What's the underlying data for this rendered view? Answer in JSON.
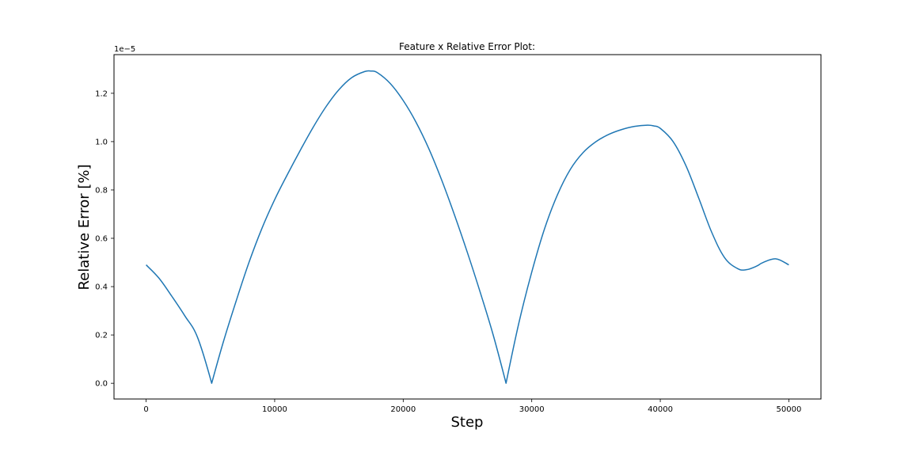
{
  "chart_data": {
    "type": "line",
    "title": "Feature x Relative Error Plot:",
    "xlabel": "Step",
    "ylabel": "Relative Error [%]",
    "y_offset_label": "1e−5",
    "y_multiplier": 1e-05,
    "xlim": [
      -2500,
      52500
    ],
    "ylim": [
      -0.065,
      1.36
    ],
    "xticks": [
      0,
      10000,
      20000,
      30000,
      40000,
      50000
    ],
    "xtick_labels": [
      "0",
      "10000",
      "20000",
      "30000",
      "40000",
      "50000"
    ],
    "yticks": [
      0.0,
      0.2,
      0.4,
      0.6,
      0.8,
      1.0,
      1.2
    ],
    "ytick_labels": [
      "0.0",
      "0.2",
      "0.4",
      "0.6",
      "0.8",
      "1.0",
      "1.2"
    ],
    "grid": false,
    "series": [
      {
        "color": "#1f77b4",
        "x": [
          0,
          1000,
          2000,
          3000,
          4000,
          5100,
          6000,
          7000,
          8000,
          9000,
          10000,
          11000,
          12000,
          13000,
          14000,
          15000,
          16000,
          17000,
          17500,
          18000,
          19000,
          20000,
          21000,
          22000,
          23000,
          24000,
          25000,
          26000,
          27000,
          28000,
          29000,
          30000,
          31000,
          32000,
          33000,
          34000,
          35000,
          36000,
          37000,
          38000,
          39000,
          39500,
          40000,
          41000,
          42000,
          43000,
          44000,
          45000,
          46000,
          46700,
          47500,
          48000,
          49000,
          50000
        ],
        "y": [
          0.49,
          0.435,
          0.36,
          0.28,
          0.19,
          0.0,
          0.17,
          0.34,
          0.5,
          0.64,
          0.76,
          0.865,
          0.965,
          1.06,
          1.145,
          1.215,
          1.265,
          1.29,
          1.292,
          1.285,
          1.24,
          1.17,
          1.08,
          0.97,
          0.84,
          0.695,
          0.54,
          0.375,
          0.2,
          0.0,
          0.25,
          0.46,
          0.64,
          0.78,
          0.885,
          0.955,
          1.0,
          1.03,
          1.05,
          1.063,
          1.068,
          1.065,
          1.055,
          1.0,
          0.9,
          0.765,
          0.625,
          0.52,
          0.475,
          0.47,
          0.485,
          0.5,
          0.515,
          0.49
        ]
      }
    ]
  }
}
